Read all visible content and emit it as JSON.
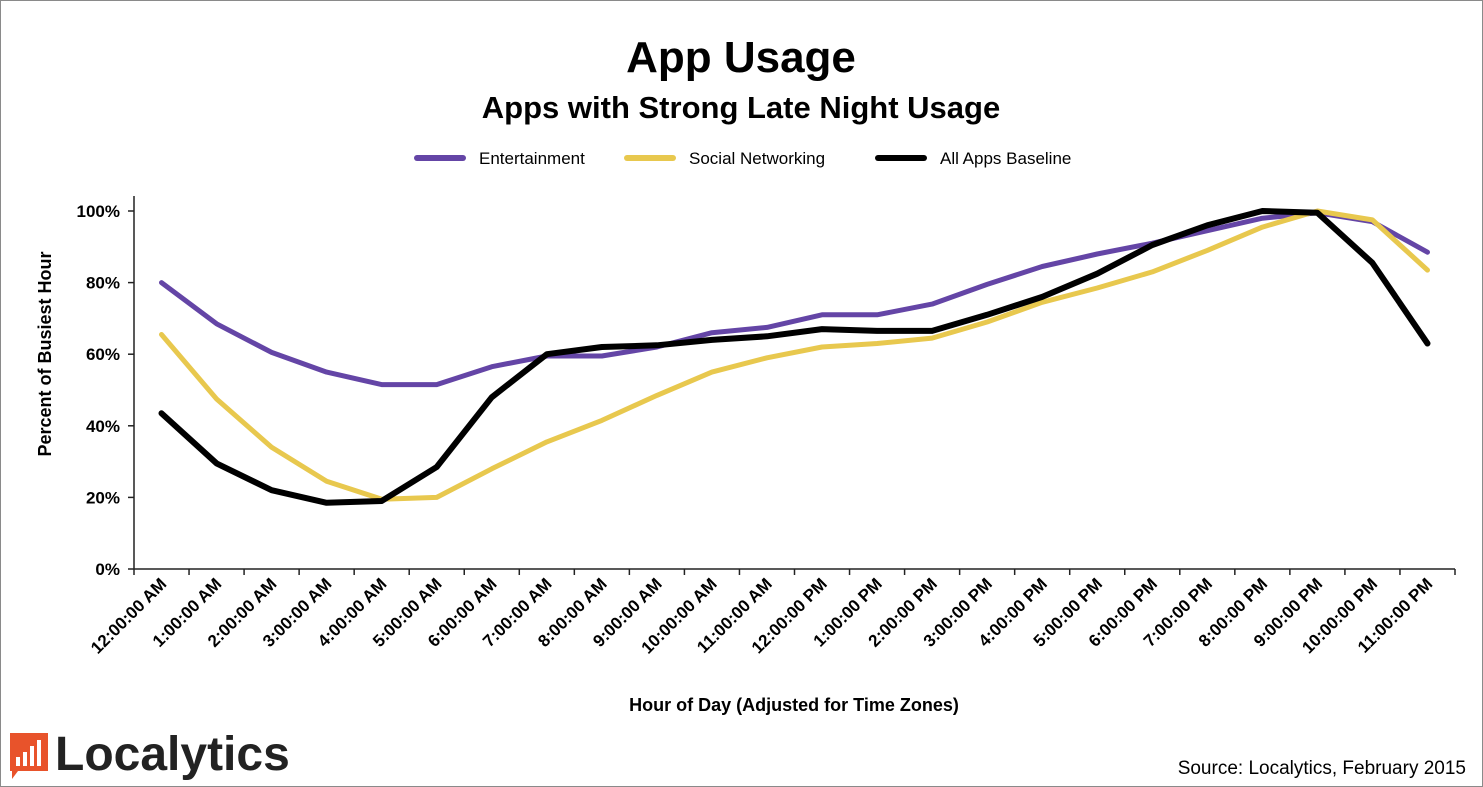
{
  "chart_data": {
    "type": "line",
    "title": "App Usage",
    "subtitle": "Apps with Strong Late Night Usage",
    "xlabel": "Hour of Day (Adjusted for Time Zones)",
    "ylabel": "Percent of Busiest Hour",
    "ylim": [
      0,
      100
    ],
    "yticks": [
      0,
      20,
      40,
      60,
      80,
      100
    ],
    "ytick_labels": [
      "0%",
      "20%",
      "40%",
      "60%",
      "80%",
      "100%"
    ],
    "legend_position": "top-center",
    "grid": false,
    "categories": [
      "12:00:00 AM",
      "1:00:00 AM",
      "2:00:00 AM",
      "3:00:00 AM",
      "4:00:00 AM",
      "5:00:00 AM",
      "6:00:00 AM",
      "7:00:00 AM",
      "8:00:00 AM",
      "9:00:00 AM",
      "10:00:00 AM",
      "11:00:00 AM",
      "12:00:00 PM",
      "1:00:00 PM",
      "2:00:00 PM",
      "3:00:00 PM",
      "4:00:00 PM",
      "5:00:00 PM",
      "6:00:00 PM",
      "7:00:00 PM",
      "8:00:00 PM",
      "9:00:00 PM",
      "10:00:00 PM",
      "11:00:00 PM"
    ],
    "series": [
      {
        "name": "Entertainment",
        "color": "#6445a6",
        "values": [
          80,
          68.5,
          60.5,
          55,
          51.5,
          51.5,
          56.5,
          59.5,
          59.5,
          62,
          66,
          67.5,
          71,
          71,
          74,
          79.5,
          84.5,
          88,
          91,
          94.5,
          98,
          99.5,
          97,
          88.5
        ]
      },
      {
        "name": "Social Networking",
        "color": "#e8c84e",
        "values": [
          65.5,
          47.5,
          34,
          24.5,
          19.5,
          20,
          28,
          35.5,
          41.5,
          48.5,
          55,
          59,
          62,
          63,
          64.5,
          69,
          74.5,
          78.5,
          83,
          89,
          95.5,
          100,
          97.5,
          83.5
        ]
      },
      {
        "name": "All Apps Baseline",
        "color": "#000000",
        "values": [
          43.5,
          29.5,
          22,
          18.5,
          19,
          28.5,
          48,
          60,
          62,
          62.5,
          64,
          65,
          67,
          66.5,
          66.5,
          71,
          76,
          82.5,
          90.5,
          96,
          100,
          99.5,
          85.5,
          63
        ]
      }
    ]
  },
  "footer": {
    "brand": "Localytics",
    "source": "Source: Localytics, February 2015"
  },
  "colors": {
    "brand_orange": "#e8532b"
  }
}
